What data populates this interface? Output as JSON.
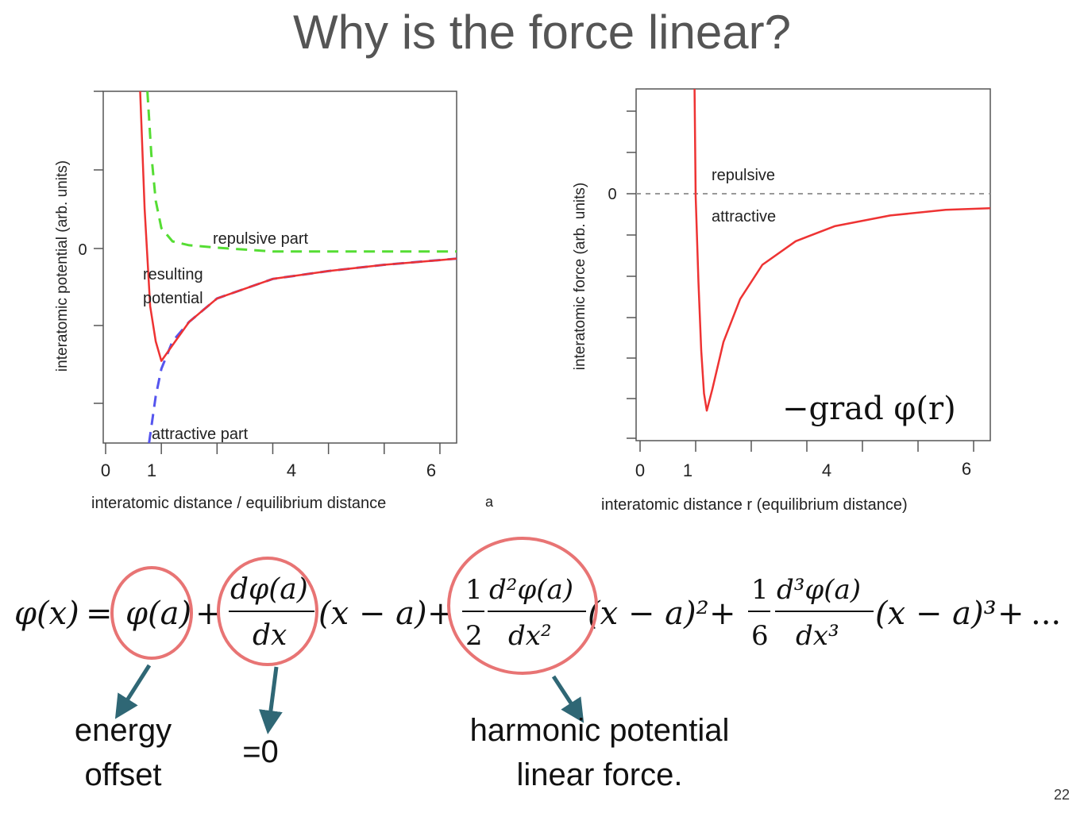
{
  "title": "Why is the force linear?",
  "slide_number": "22",
  "colors": {
    "potential": "#ee3333",
    "repulsive": "#55dd33",
    "attractive": "#5555ee",
    "zero_line": "#999999",
    "circle": "#e87474",
    "arrow": "#2f6775",
    "title": "#555555"
  },
  "chart_data": [
    {
      "type": "line",
      "ylabel": "interatomic potential (arb. units)",
      "xlabel": "interatomic distance / equilibrium distance",
      "xlabel_suffix": "a",
      "x_ticks": [
        "0",
        "1",
        "4",
        "6"
      ],
      "y_ticks": [
        "0"
      ],
      "xlim": [
        0,
        6.3
      ],
      "series": [
        {
          "name": "resulting potential",
          "label_lines": [
            "resulting",
            "potential"
          ],
          "style": "solid",
          "x": [
            0.62,
            0.7,
            0.8,
            0.9,
            1.0,
            1.2,
            1.5,
            2.0,
            3.0,
            4.0,
            5.0,
            6.0,
            6.3
          ],
          "y": [
            3.1,
            0.5,
            -0.75,
            -1.2,
            -1.45,
            -1.25,
            -0.95,
            -0.65,
            -0.4,
            -0.3,
            -0.22,
            -0.16,
            -0.14
          ]
        },
        {
          "name": "repulsive part",
          "style": "dashed",
          "x": [
            0.75,
            0.82,
            0.9,
            1.0,
            1.2,
            1.5,
            2.0,
            3.0,
            4.0,
            5.0,
            6.3
          ],
          "y": [
            2.0,
            1.2,
            0.6,
            0.25,
            0.08,
            0.03,
            0.0,
            -0.05,
            -0.05,
            -0.05,
            -0.05
          ]
        },
        {
          "name": "attractive part",
          "style": "dashed",
          "x": [
            0.78,
            0.9,
            1.0,
            1.2,
            1.5,
            2.0,
            3.0,
            4.0,
            5.0,
            6.3
          ],
          "y": [
            -2.5,
            -1.9,
            -1.55,
            -1.2,
            -0.95,
            -0.65,
            -0.4,
            -0.3,
            -0.22,
            -0.14
          ]
        }
      ]
    },
    {
      "type": "line",
      "ylabel": "interatomic force (arb. units)",
      "xlabel": "interatomic distance r (equilibrium distance)",
      "x_ticks": [
        "0",
        "1",
        "4",
        "6"
      ],
      "y_ticks": [
        "0"
      ],
      "region_labels": [
        "repulsive",
        "attractive"
      ],
      "formula": "−grad φ(r)",
      "xlim": [
        0,
        6.3
      ],
      "series": [
        {
          "style": "solid",
          "x": [
            0.98,
            1.0,
            1.05,
            1.1,
            1.15,
            1.2,
            1.3,
            1.5,
            1.8,
            2.2,
            2.8,
            3.5,
            4.5,
            5.5,
            6.3
          ],
          "y": [
            2.5,
            0.0,
            -2.0,
            -3.6,
            -4.6,
            -5.0,
            -4.5,
            -3.4,
            -2.4,
            -1.6,
            -1.05,
            -0.7,
            -0.45,
            -0.32,
            -0.28
          ]
        }
      ]
    }
  ],
  "equation": {
    "lhs": "φ(x) =",
    "terms": [
      "φ(a)",
      "dφ(a)/dx (x − a)",
      "1/2 d²φ(a)/dx² (x − a)²",
      "1/6 d³φ(a)/dx³ (x − a)³",
      "..."
    ]
  },
  "annotations": {
    "energy_offset": [
      "energy",
      "offset"
    ],
    "zero": "=0",
    "harmonic": [
      "harmonic potential",
      "linear force."
    ]
  }
}
